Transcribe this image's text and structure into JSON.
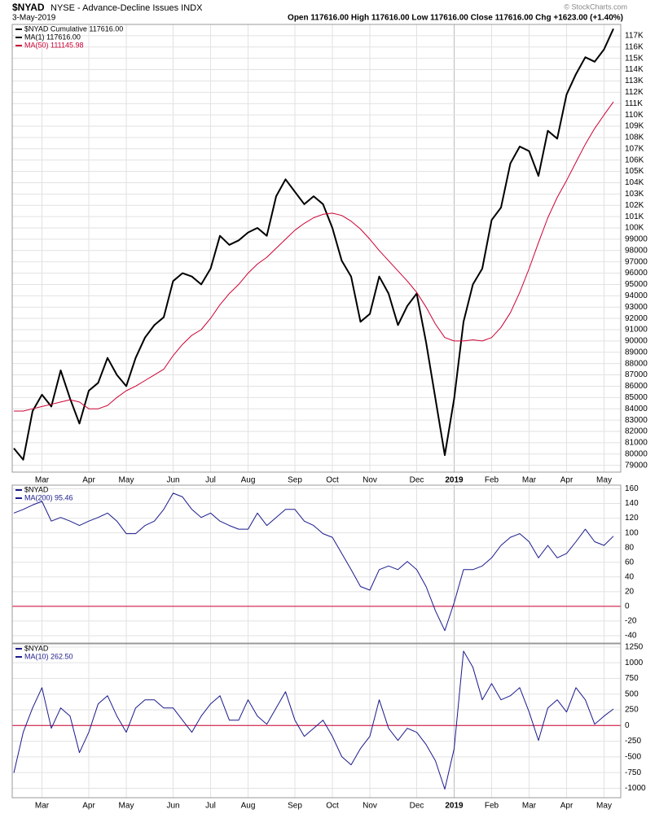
{
  "chart_data": [
    {
      "type": "line",
      "title": "$NYAD",
      "subtitle": "NYSE - Advance-Decline Issues INDX",
      "date": "3-May-2019",
      "quote": "Open 117616.00 High 117616.00 Low 117616.00 Close 117616.00 Chg +1623.00 (+1.40%)",
      "credit": "© StockCharts.com",
      "label": "$NYAD Cumulative 117616.00",
      "categories": [
        null,
        null,
        null,
        "Mar",
        null,
        null,
        null,
        null,
        "Apr",
        null,
        null,
        null,
        "May",
        null,
        null,
        null,
        null,
        "Jun",
        null,
        null,
        null,
        "Jul",
        null,
        null,
        null,
        "Aug",
        null,
        null,
        null,
        null,
        "Sep",
        null,
        null,
        null,
        "Oct",
        null,
        null,
        null,
        "Nov",
        null,
        null,
        null,
        null,
        "Dec",
        null,
        null,
        null,
        "2019",
        null,
        null,
        null,
        "Feb",
        null,
        null,
        null,
        "Mar",
        null,
        null,
        null,
        "Apr",
        null,
        null,
        null,
        "May",
        null
      ],
      "series": [
        {
          "name": "MA(1) 117616.00",
          "color": "#000000",
          "values": [
            80500,
            79500,
            83800,
            85250,
            84200,
            87400,
            84900,
            82700,
            85600,
            86300,
            88500,
            87000,
            86000,
            88500,
            90300,
            91400,
            92100,
            95300,
            96000,
            95700,
            95000,
            96400,
            99300,
            98500,
            98900,
            99600,
            100000,
            99300,
            102800,
            104300,
            103200,
            102100,
            102800,
            102100,
            100000,
            97100,
            95700,
            91700,
            92400,
            95700,
            94200,
            91400,
            93100,
            94200,
            89900,
            84900,
            79900,
            84900,
            91700,
            95000,
            96400,
            100700,
            101800,
            105700,
            107200,
            106800,
            104600,
            108600,
            107900,
            111800,
            113600,
            115100,
            114700,
            115800,
            117616
          ]
        },
        {
          "name": "MA(50) 111145.98",
          "color": "#cc0033",
          "values": [
            83800,
            83800,
            84000,
            84200,
            84400,
            84600,
            84800,
            84600,
            84000,
            84000,
            84300,
            85000,
            85600,
            86000,
            86500,
            87000,
            87500,
            88700,
            89700,
            90500,
            91000,
            92000,
            93200,
            94200,
            95000,
            96000,
            96800,
            97400,
            98200,
            99000,
            99800,
            100400,
            100900,
            101200,
            101300,
            101100,
            100600,
            99900,
            99000,
            98000,
            97100,
            96200,
            95300,
            94300,
            93000,
            91500,
            90300,
            90000,
            90000,
            90100,
            90000,
            90300,
            91200,
            92500,
            94300,
            96400,
            98700,
            100900,
            102700,
            104200,
            105800,
            107400,
            108800,
            110000,
            111146
          ]
        }
      ],
      "ylim": [
        78400,
        118000
      ],
      "yticks": [
        79000,
        80000,
        81000,
        82000,
        83000,
        84000,
        85000,
        86000,
        87000,
        88000,
        89000,
        90000,
        91000,
        92000,
        93000,
        94000,
        95000,
        96000,
        97000,
        98000,
        99000,
        {
          "value": 100000,
          "label": "100K"
        },
        {
          "value": 101000,
          "label": "101K"
        },
        {
          "value": 102000,
          "label": "102K"
        },
        {
          "value": 103000,
          "label": "103K"
        },
        {
          "value": 104000,
          "label": "104K"
        },
        {
          "value": 105000,
          "label": "105K"
        },
        {
          "value": 106000,
          "label": "106K"
        },
        {
          "value": 107000,
          "label": "107K"
        },
        {
          "value": 108000,
          "label": "108K"
        },
        {
          "value": 109000,
          "label": "109K"
        },
        {
          "value": 110000,
          "label": "110K"
        },
        {
          "value": 111000,
          "label": "111K"
        },
        {
          "value": 112000,
          "label": "112K"
        },
        {
          "value": 113000,
          "label": "113K"
        },
        {
          "value": 114000,
          "label": "114K"
        },
        {
          "value": 115000,
          "label": "115K"
        },
        {
          "value": 116000,
          "label": "116K"
        },
        {
          "value": 117000,
          "label": "117K"
        }
      ],
      "grid": true
    },
    {
      "type": "line",
      "label": "$NYAD",
      "series": [
        {
          "name": "MA(200) 95.46",
          "color": "#1a1a8c",
          "values": [
            127,
            132,
            138,
            143,
            116,
            121,
            116,
            110,
            116,
            121,
            127,
            116,
            99,
            99,
            110,
            116,
            132,
            154,
            149,
            132,
            121,
            127,
            116,
            110,
            105,
            105,
            127,
            110,
            121,
            132,
            132,
            116,
            110,
            99,
            94,
            72,
            50,
            27,
            22,
            50,
            55,
            50,
            61,
            50,
            27,
            -6,
            -33,
            5,
            50,
            50,
            55,
            66,
            83,
            94,
            99,
            88,
            66,
            83,
            66,
            72,
            88,
            105,
            88,
            83,
            95.46
          ]
        }
      ],
      "ylim": [
        -50,
        165
      ],
      "yticks": [
        160,
        140,
        120,
        100,
        80,
        60,
        40,
        20,
        0,
        -20,
        -40
      ],
      "baseline": 0,
      "baseline_color": "#cc0033",
      "grid": true
    },
    {
      "type": "line",
      "label": "$NYAD",
      "categories": [
        null,
        null,
        null,
        "Mar",
        null,
        null,
        null,
        null,
        "Apr",
        null,
        null,
        null,
        "May",
        null,
        null,
        null,
        null,
        "Jun",
        null,
        null,
        null,
        "Jul",
        null,
        null,
        null,
        "Aug",
        null,
        null,
        null,
        null,
        "Sep",
        null,
        null,
        null,
        "Oct",
        null,
        null,
        null,
        "Nov",
        null,
        null,
        null,
        null,
        "Dec",
        null,
        null,
        null,
        "2019",
        null,
        null,
        null,
        "Feb",
        null,
        null,
        null,
        "Mar",
        null,
        null,
        null,
        "Apr",
        null,
        null,
        null,
        "May",
        null
      ],
      "series": [
        {
          "name": "MA(10) 262.50",
          "color": "#1a1a8c",
          "values": [
            -755,
            -108,
            280,
            603,
            -44,
            280,
            150,
            -432,
            -108,
            344,
            474,
            150,
            -108,
            280,
            409,
            409,
            280,
            280,
            86,
            -108,
            150,
            344,
            474,
            86,
            86,
            409,
            150,
            21,
            280,
            538,
            86,
            -173,
            -44,
            86,
            -173,
            -496,
            -626,
            -367,
            -173,
            409,
            -44,
            -238,
            -44,
            -108,
            -302,
            -561,
            -1014,
            -367,
            1185,
            927,
            409,
            668,
            409,
            474,
            603,
            215,
            -238,
            280,
            409,
            215,
            603,
            409,
            21,
            150,
            262.5
          ]
        }
      ],
      "ylim": [
        -1150,
        1300
      ],
      "yticks": [
        1250,
        1000,
        750,
        500,
        250,
        0,
        -250,
        -500,
        -750,
        -1000
      ],
      "baseline": 0,
      "baseline_color": "#cc0033",
      "grid": true
    }
  ]
}
